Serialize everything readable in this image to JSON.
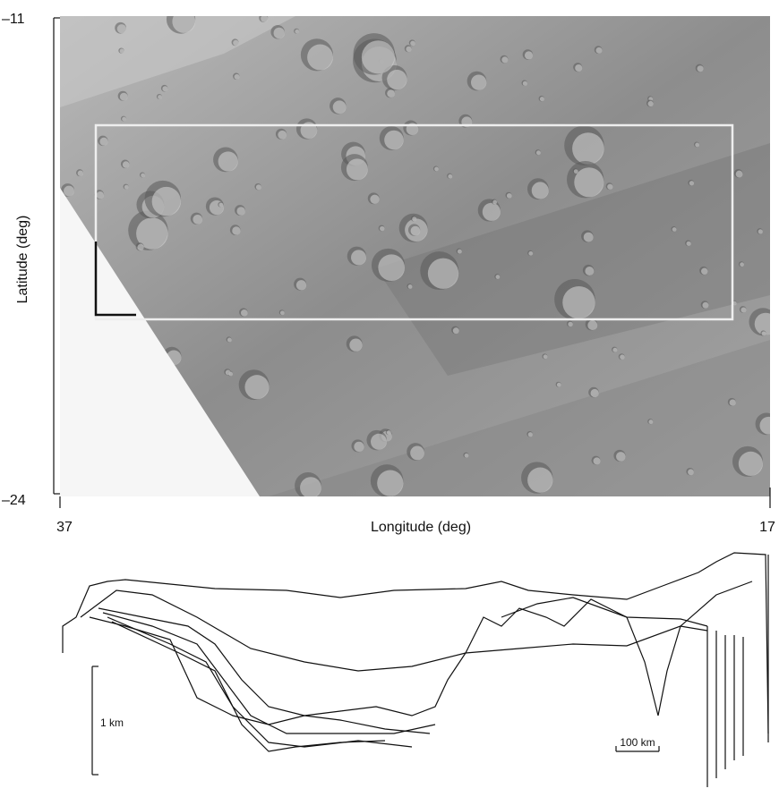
{
  "map": {
    "y_axis": {
      "label": "Latitude (deg)",
      "ticks": [
        "–11",
        "–24"
      ]
    },
    "x_axis": {
      "label": "Longitude (deg)",
      "ticks": [
        "37",
        "17"
      ]
    }
  },
  "profiles": {
    "vertical_scale": "1 km",
    "horizontal_scale": "100 km"
  }
}
